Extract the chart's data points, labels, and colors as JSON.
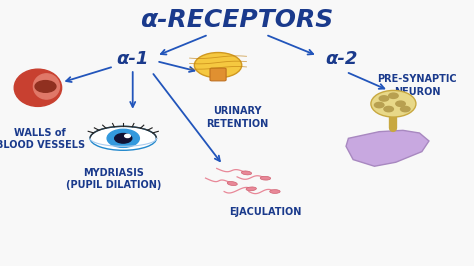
{
  "title": "α-RECEPTORS",
  "title_color": "#1a3a8c",
  "title_fontsize": 18,
  "bg_color": "#f8f8f8",
  "alpha1_label": "α-1",
  "alpha2_label": "α-2",
  "alpha_label_color": "#1a3a8c",
  "alpha_label_fontsize": 13,
  "arrow_color": "#2255bb",
  "label_color": "#1a3a8c",
  "label_fontsize": 7,
  "vessel_color": "#c0392b",
  "vessel_inner_color": "#e07060",
  "bladder_color": "#f0c050",
  "bladder_neck_color": "#e09030",
  "eye_iris_color": "#2288cc",
  "eye_pupil_color": "#111133",
  "sperm_color": "#e88898",
  "bouton_color": "#e8d888",
  "bouton_dot_color": "#b8a050",
  "post_color": "#c8a8e0",
  "post_edge_color": "#a888c0"
}
